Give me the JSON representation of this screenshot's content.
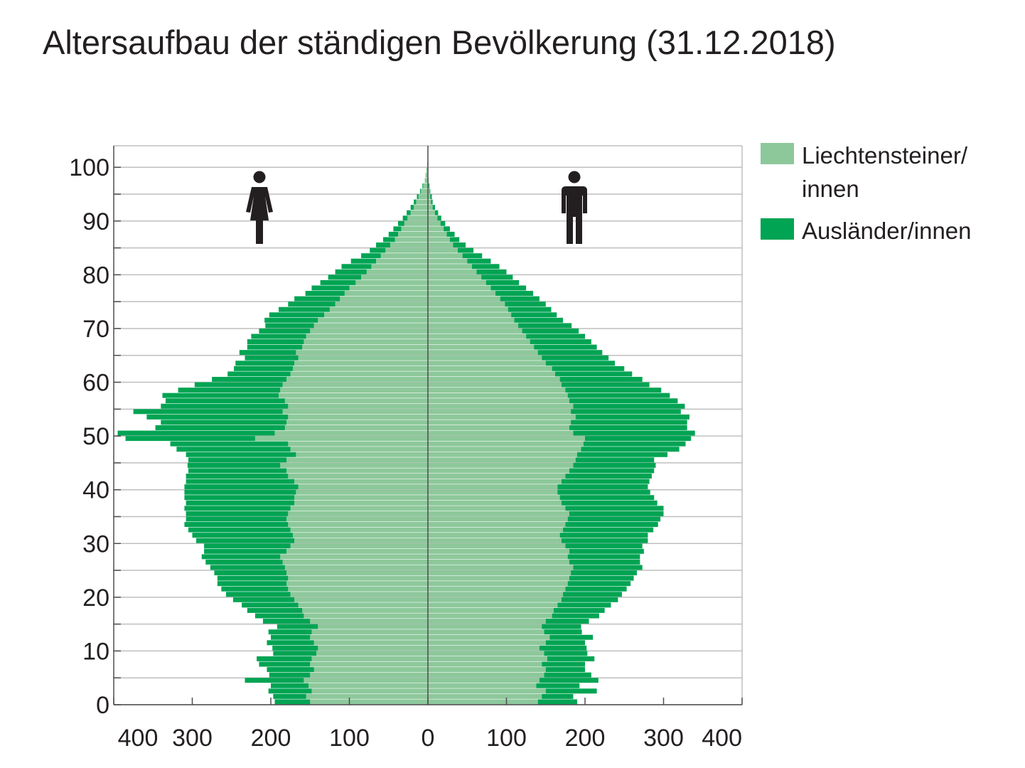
{
  "title": "Altersaufbau der ständigen Bevölkerung (31.12.2018)",
  "colors": {
    "liechtensteiner": "#8dc89b",
    "auslaender": "#00a453",
    "grid": "#bfbfbf",
    "axis": "#4d4d4d",
    "icon": "#231f20"
  },
  "icons": {
    "left": "female-icon",
    "right": "male-icon"
  },
  "legend": [
    {
      "label_lines": [
        "Liechtensteiner/",
        "innen"
      ],
      "key": "liechtensteiner"
    },
    {
      "label_lines": [
        "Ausländer/innen"
      ],
      "key": "auslaender"
    }
  ],
  "chart_data": {
    "type": "bar",
    "orientation": "horizontal-pyramid",
    "title": "Altersaufbau der ständigen Bevölkerung (31.12.2018)",
    "xlabel": "",
    "ylabel": "",
    "x_ticks": [
      "400",
      "300",
      "200",
      "100",
      "0",
      "100",
      "200",
      "300",
      "400"
    ],
    "y_ticks": [
      "0",
      "10",
      "20",
      "30",
      "40",
      "50",
      "60",
      "70",
      "80",
      "90",
      "100"
    ],
    "xlim": [
      -400,
      400
    ],
    "ylim": [
      0,
      104
    ],
    "grid": true,
    "legend_position": "right",
    "ages": [
      0,
      1,
      2,
      3,
      4,
      5,
      6,
      7,
      8,
      9,
      10,
      11,
      12,
      13,
      14,
      15,
      16,
      17,
      18,
      19,
      20,
      21,
      22,
      23,
      24,
      25,
      26,
      27,
      28,
      29,
      30,
      31,
      32,
      33,
      34,
      35,
      36,
      37,
      38,
      39,
      40,
      41,
      42,
      43,
      44,
      45,
      46,
      47,
      48,
      49,
      50,
      51,
      52,
      53,
      54,
      55,
      56,
      57,
      58,
      59,
      60,
      61,
      62,
      63,
      64,
      65,
      66,
      67,
      68,
      69,
      70,
      71,
      72,
      73,
      74,
      75,
      76,
      77,
      78,
      79,
      80,
      81,
      82,
      83,
      84,
      85,
      86,
      87,
      88,
      89,
      90,
      91,
      92,
      93,
      94,
      95,
      96,
      97,
      98,
      99,
      100
    ],
    "series": [
      {
        "name": "Liechtensteiner/innen",
        "sex": "female",
        "values": [
          150,
          155,
          148,
          152,
          158,
          150,
          145,
          150,
          148,
          142,
          140,
          145,
          150,
          148,
          140,
          150,
          158,
          160,
          165,
          170,
          175,
          178,
          180,
          178,
          180,
          182,
          185,
          188,
          180,
          175,
          170,
          172,
          175,
          178,
          180,
          178,
          175,
          170,
          170,
          168,
          165,
          170,
          178,
          180,
          188,
          180,
          168,
          175,
          178,
          220,
          195,
          182,
          180,
          178,
          185,
          178,
          182,
          190,
          188,
          185,
          180,
          175,
          172,
          170,
          165,
          168,
          160,
          158,
          155,
          150,
          145,
          140,
          132,
          125,
          118,
          112,
          106,
          100,
          92,
          85,
          78,
          72,
          66,
          60,
          54,
          48,
          42,
          38,
          34,
          30,
          26,
          22,
          18,
          15,
          12,
          9,
          6,
          4,
          3,
          2,
          1
        ]
      },
      {
        "name": "Ausländer/innen",
        "sex": "female",
        "values": [
          45,
          42,
          55,
          48,
          75,
          52,
          60,
          65,
          70,
          55,
          58,
          60,
          50,
          55,
          52,
          60,
          62,
          70,
          72,
          78,
          82,
          85,
          88,
          90,
          92,
          95,
          98,
          100,
          105,
          110,
          125,
          128,
          130,
          132,
          128,
          130,
          135,
          138,
          140,
          142,
          145,
          138,
          130,
          125,
          118,
          125,
          140,
          145,
          150,
          165,
          200,
          165,
          160,
          180,
          190,
          162,
          152,
          148,
          130,
          112,
          95,
          80,
          75,
          75,
          68,
          72,
          70,
          72,
          70,
          65,
          62,
          68,
          70,
          65,
          60,
          58,
          50,
          48,
          45,
          42,
          40,
          38,
          32,
          25,
          20,
          18,
          15,
          12,
          10,
          8,
          6,
          5,
          4,
          3,
          2,
          1,
          1,
          0,
          0,
          0,
          0
        ]
      },
      {
        "name": "Liechtensteiner/innen",
        "sex": "male",
        "values": [
          140,
          145,
          150,
          138,
          142,
          148,
          150,
          145,
          152,
          148,
          142,
          150,
          155,
          148,
          145,
          150,
          158,
          160,
          165,
          170,
          172,
          175,
          178,
          180,
          182,
          185,
          180,
          178,
          180,
          175,
          170,
          168,
          172,
          175,
          178,
          180,
          175,
          170,
          168,
          165,
          165,
          170,
          175,
          180,
          185,
          188,
          190,
          195,
          198,
          200,
          185,
          180,
          182,
          188,
          182,
          185,
          180,
          178,
          175,
          170,
          168,
          162,
          158,
          150,
          145,
          140,
          135,
          130,
          125,
          120,
          115,
          110,
          106,
          102,
          98,
          92,
          86,
          80,
          74,
          68,
          62,
          56,
          50,
          44,
          38,
          32,
          28,
          24,
          20,
          16,
          12,
          9,
          6,
          4,
          3,
          2,
          1,
          1,
          0,
          0,
          0
        ]
      },
      {
        "name": "Ausländer/innen",
        "sex": "male",
        "values": [
          50,
          40,
          65,
          55,
          75,
          60,
          50,
          55,
          60,
          55,
          60,
          50,
          55,
          48,
          50,
          55,
          60,
          65,
          68,
          72,
          75,
          78,
          80,
          82,
          84,
          88,
          90,
          92,
          95,
          98,
          110,
          112,
          115,
          118,
          118,
          120,
          125,
          122,
          120,
          118,
          115,
          112,
          110,
          108,
          105,
          100,
          115,
          125,
          130,
          135,
          155,
          150,
          148,
          145,
          140,
          142,
          138,
          130,
          122,
          112,
          105,
          98,
          92,
          88,
          85,
          82,
          80,
          78,
          75,
          72,
          68,
          62,
          58,
          55,
          52,
          50,
          48,
          45,
          42,
          40,
          38,
          35,
          30,
          25,
          20,
          16,
          12,
          10,
          8,
          6,
          5,
          4,
          3,
          2,
          2,
          1,
          1,
          0,
          0,
          0,
          0
        ]
      }
    ]
  }
}
